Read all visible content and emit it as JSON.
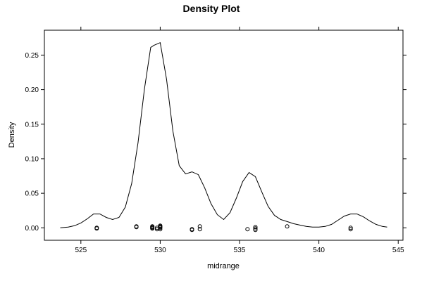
{
  "chart_data": {
    "type": "line",
    "title": "Density Plot",
    "xlabel": "midrange",
    "ylabel": "Density",
    "xlim": [
      522.7,
      545.3
    ],
    "ylim": [
      -0.018,
      0.286
    ],
    "x_ticks": [
      525,
      530,
      535,
      540,
      545
    ],
    "x_tick_labels": [
      "525",
      "530",
      "535",
      "540",
      "545"
    ],
    "y_ticks": [
      0.0,
      0.05,
      0.1,
      0.15,
      0.2,
      0.25
    ],
    "y_tick_labels": [
      "0.00",
      "0.05",
      "0.10",
      "0.15",
      "0.20",
      "0.25"
    ],
    "grid": false,
    "series": [
      {
        "x": [
          523.7,
          524.2,
          524.6,
          525.0,
          525.4,
          525.8,
          526.2,
          526.6,
          527.0,
          527.4,
          527.8,
          528.2,
          528.6,
          529.0,
          529.4,
          529.6,
          530.0,
          530.4,
          530.8,
          531.2,
          531.6,
          532.0,
          532.4,
          532.8,
          533.2,
          533.6,
          534.0,
          534.4,
          534.8,
          535.2,
          535.6,
          536.0,
          536.4,
          536.8,
          537.2,
          537.6,
          538.0,
          538.4,
          538.8,
          539.2,
          539.6,
          540.0,
          540.4,
          540.8,
          541.2,
          541.6,
          542.0,
          542.4,
          542.8,
          543.2,
          543.6,
          544.0,
          544.3
        ],
        "values": [
          0.0,
          0.001,
          0.003,
          0.007,
          0.013,
          0.02,
          0.02,
          0.015,
          0.012,
          0.015,
          0.03,
          0.064,
          0.123,
          0.2,
          0.261,
          0.264,
          0.268,
          0.215,
          0.14,
          0.09,
          0.078,
          0.081,
          0.077,
          0.058,
          0.035,
          0.019,
          0.012,
          0.022,
          0.043,
          0.067,
          0.08,
          0.074,
          0.052,
          0.031,
          0.018,
          0.012,
          0.009,
          0.006,
          0.004,
          0.002,
          0.001,
          0.001,
          0.002,
          0.005,
          0.011,
          0.017,
          0.02,
          0.02,
          0.016,
          0.01,
          0.005,
          0.002,
          0.001
        ]
      }
    ],
    "rug": {
      "x": [
        526.0,
        526.0,
        528.5,
        528.5,
        529.5,
        529.5,
        529.5,
        529.5,
        529.8,
        529.8,
        530.0,
        530.0,
        530.0,
        530.0,
        530.0,
        532.0,
        532.0,
        532.5,
        532.5,
        535.5,
        536.0,
        536.0,
        536.0,
        538.0,
        542.0,
        542.0
      ],
      "y": [
        0.0,
        -0.001,
        0.001,
        0.002,
        -0.001,
        0.0,
        0.001,
        0.002,
        0.0,
        -0.002,
        -0.002,
        0.0,
        0.001,
        0.002,
        0.003,
        -0.002,
        -0.003,
        0.002,
        -0.002,
        -0.002,
        0.001,
        -0.001,
        -0.003,
        0.002,
        0.0,
        -0.002
      ]
    }
  }
}
